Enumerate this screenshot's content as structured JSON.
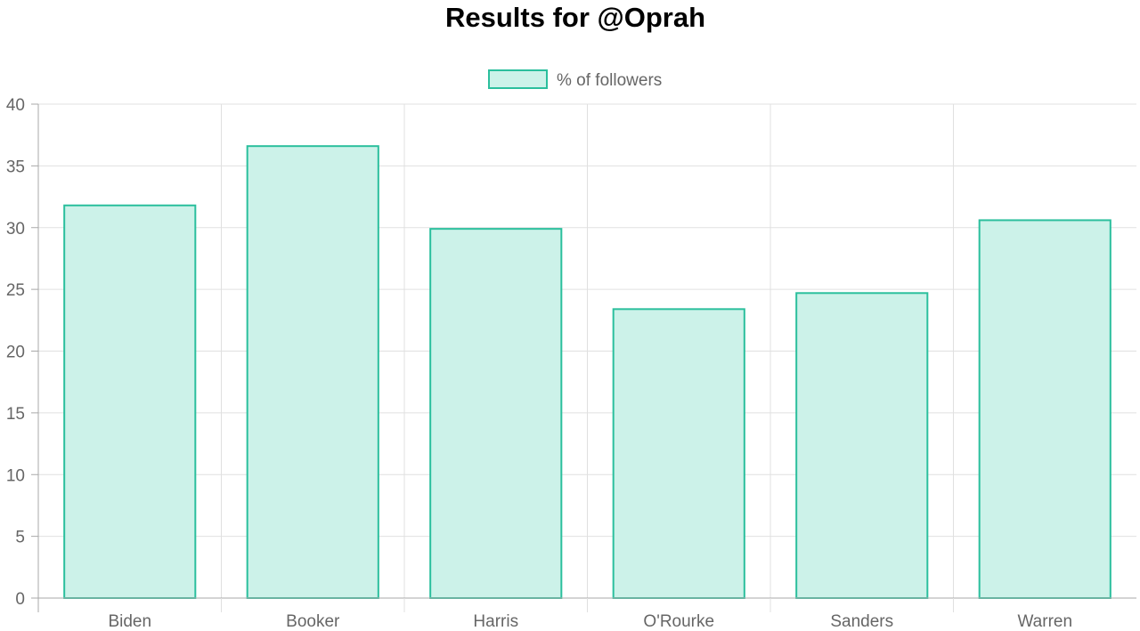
{
  "chart_data": {
    "type": "bar",
    "title": "Results for @Oprah",
    "categories": [
      "Biden",
      "Booker",
      "Harris",
      "O'Rourke",
      "Sanders",
      "Warren"
    ],
    "series": [
      {
        "name": "% of followers",
        "values": [
          31.8,
          36.6,
          29.9,
          23.4,
          24.7,
          30.6
        ]
      }
    ],
    "ylim": [
      0,
      40
    ],
    "yticks": [
      "0",
      "5",
      "10",
      "15",
      "20",
      "25",
      "30",
      "35",
      "40"
    ],
    "grid": true,
    "legend_position": "top-center",
    "colors": {
      "bar_fill": "#ccf2e9",
      "bar_stroke": "#2bbf9d"
    }
  }
}
